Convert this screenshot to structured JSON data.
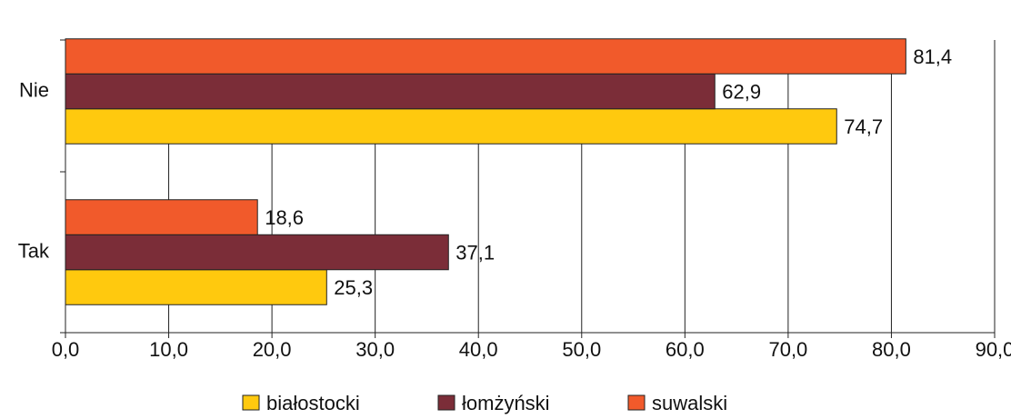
{
  "chart_data": {
    "type": "hbar",
    "categories": [
      "Nie",
      "Tak"
    ],
    "series": [
      {
        "name": "białostocki",
        "color": "#ffc90e",
        "values": [
          74.7,
          25.3
        ],
        "value_labels": [
          "74,7",
          "25,3"
        ]
      },
      {
        "name": "łomżyński",
        "color": "#7b2d38",
        "values": [
          62.9,
          37.1
        ],
        "value_labels": [
          "62,9",
          "37,1"
        ]
      },
      {
        "name": "suwalski",
        "color": "#f15a2b",
        "values": [
          81.4,
          18.6
        ],
        "value_labels": [
          "81,4",
          "18,6"
        ]
      }
    ],
    "xlim": [
      0,
      90
    ],
    "xticks": [
      {
        "value": 0,
        "label": "0,0"
      },
      {
        "value": 10,
        "label": "10,0"
      },
      {
        "value": 20,
        "label": "20,0"
      },
      {
        "value": 30,
        "label": "30,0"
      },
      {
        "value": 40,
        "label": "40,0"
      },
      {
        "value": 50,
        "label": "50,0"
      },
      {
        "value": 60,
        "label": "60,0"
      },
      {
        "value": 70,
        "label": "70,0"
      },
      {
        "value": 80,
        "label": "80,0"
      },
      {
        "value": 90,
        "label": "90,0"
      }
    ],
    "grid": true,
    "legend": "bottom"
  }
}
